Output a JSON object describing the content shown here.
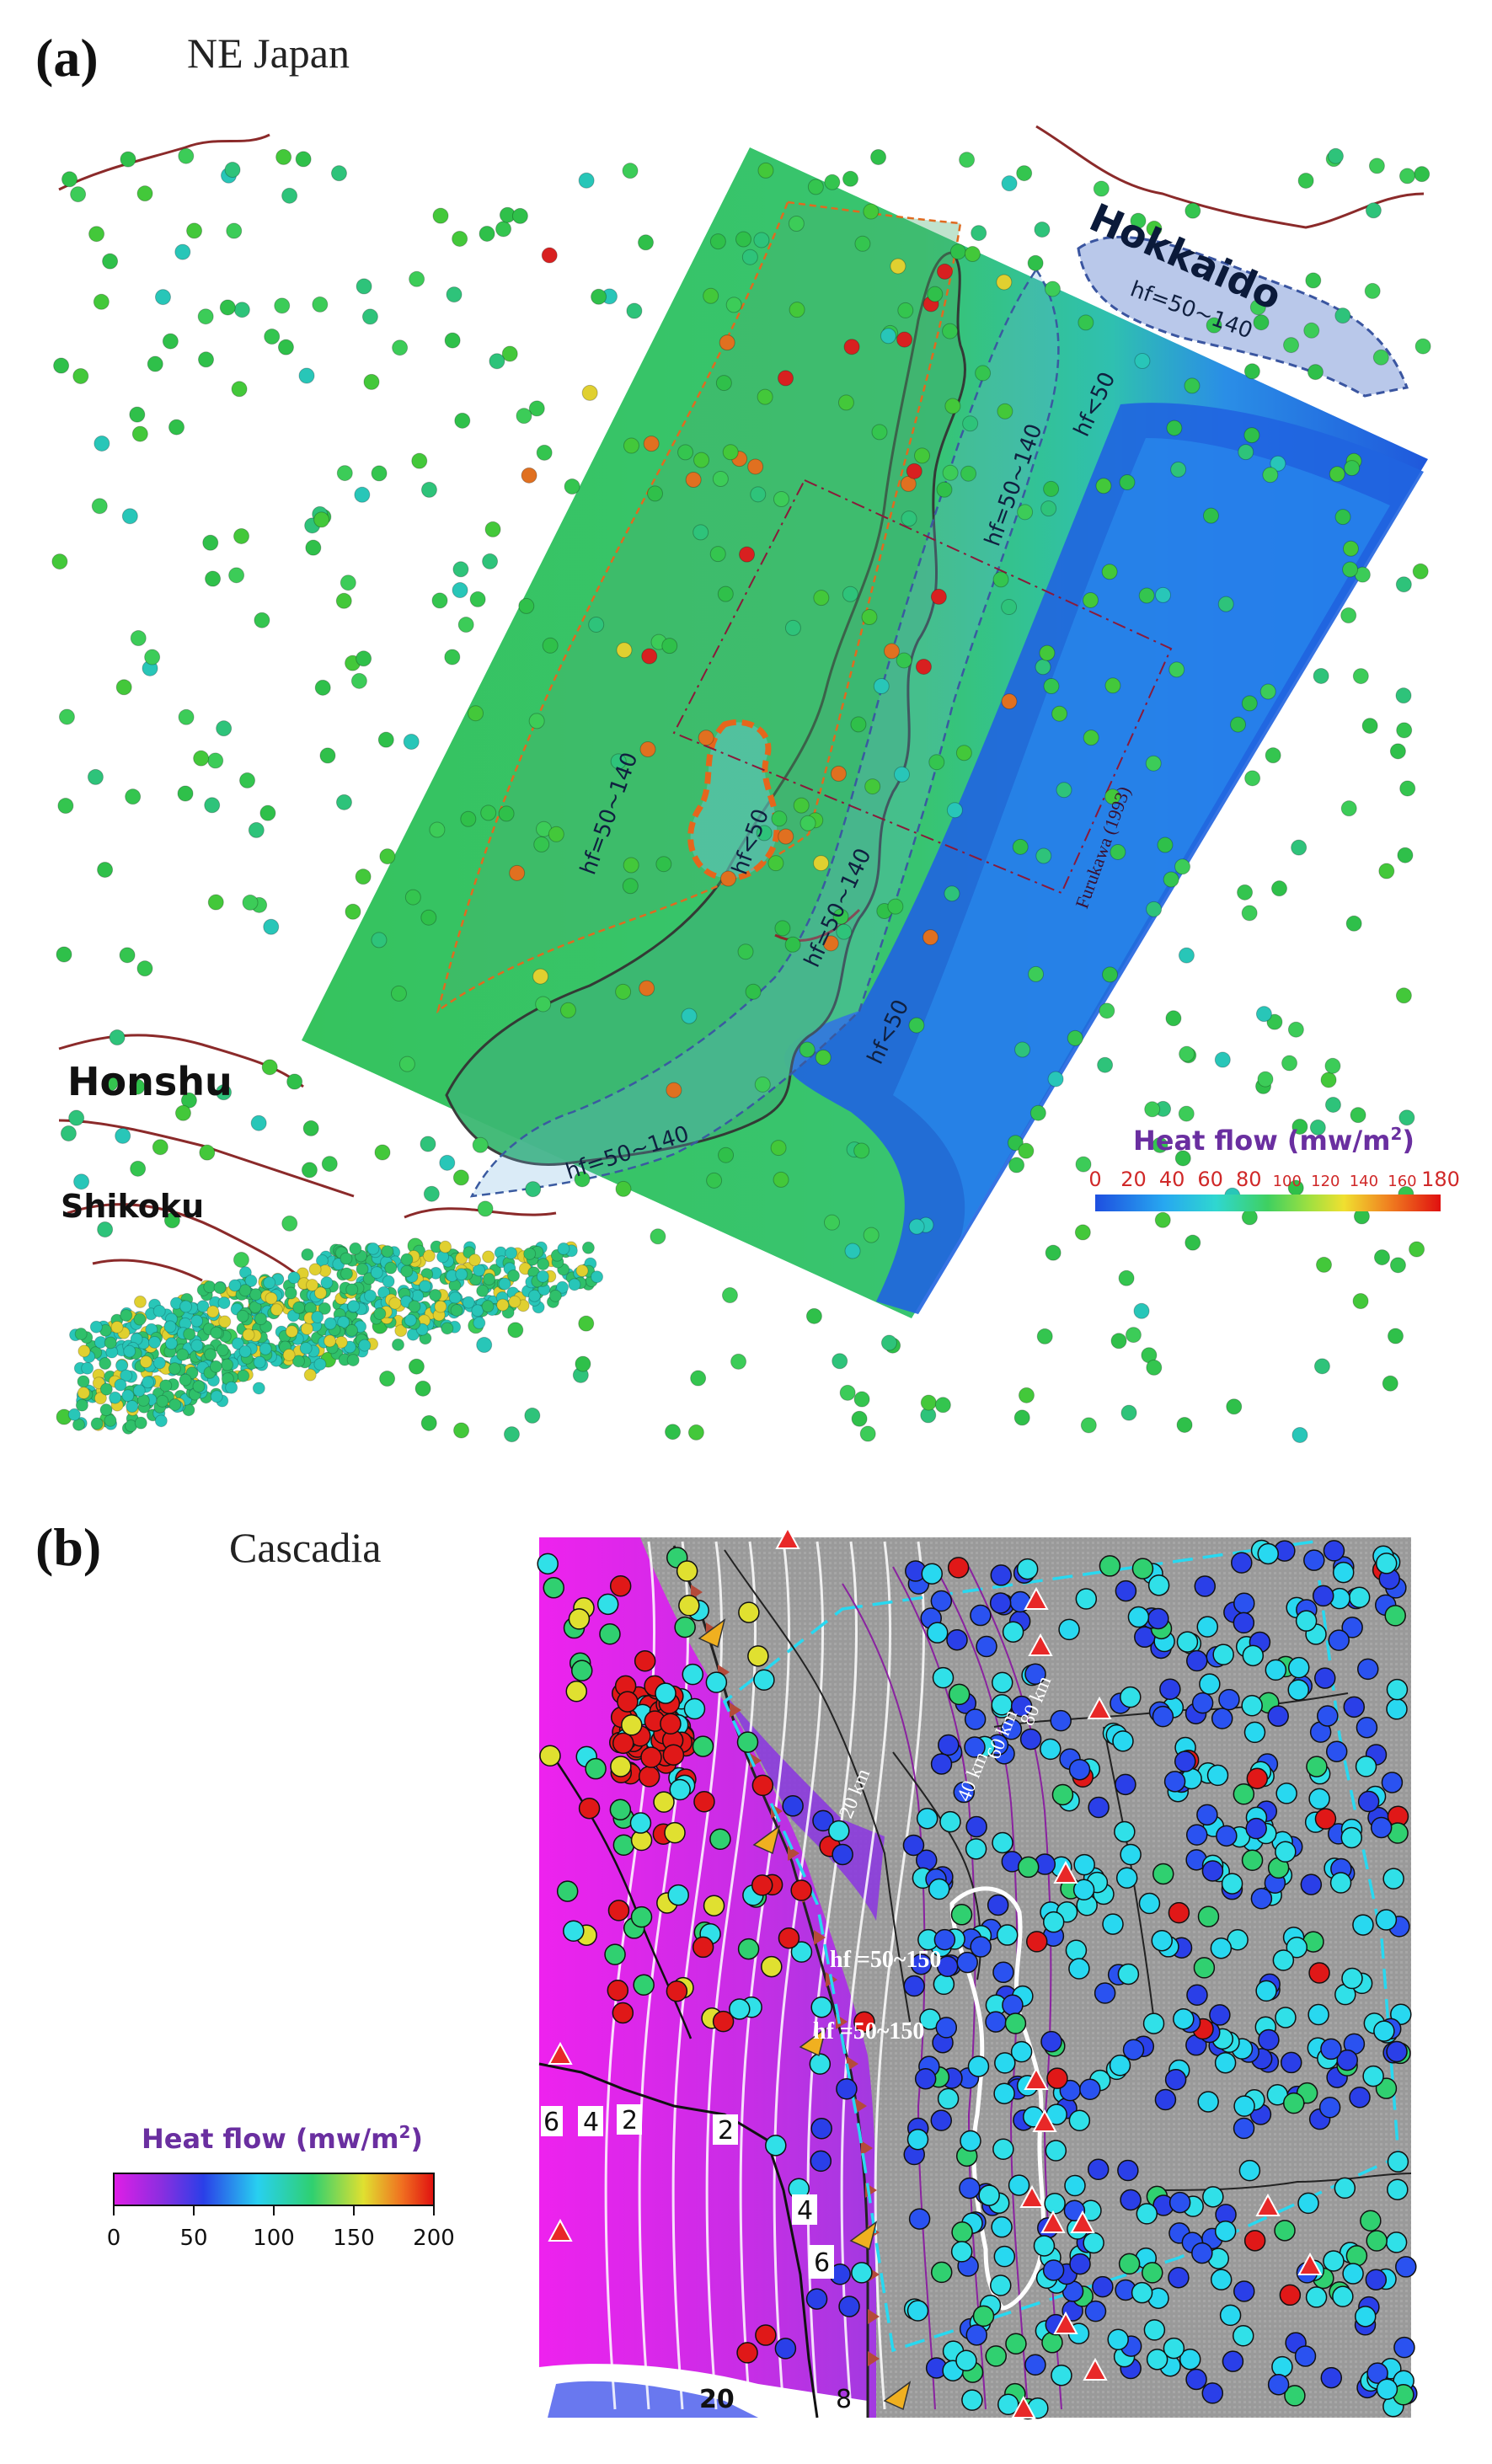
{
  "panel_a": {
    "letter": "(a)",
    "region": "NE Japan",
    "labels": {
      "hokkaido": "Hokkaido",
      "honshu": "Honshu",
      "shikoku": "Shikoku",
      "hf_hokkaido": "hf=50~140",
      "hf_east_mid": "hf=50~140",
      "hf_lt50_ne": "hf<50",
      "hf_west": "hf=50~140",
      "hf_lt50_center": "hf<50",
      "hf_south": "hf=50~140",
      "hf_lt50_se": "hf<50",
      "hf_sw": "hf=50~140",
      "furukawa": "Furukawa (1993)"
    },
    "colorbar": {
      "title": "Heat flow (mw/m",
      "sup": "2",
      "title_close": ")",
      "ticks": [
        "0",
        "20",
        "40",
        "60",
        "80",
        "100",
        "120",
        "140",
        "160",
        "180"
      ],
      "range": [
        0,
        180
      ]
    }
  },
  "panel_b": {
    "letter": "(b)",
    "region": "Cascadia",
    "labels": {
      "hf_upper": "hf =50~150",
      "hf_lower": "hf =50~150",
      "km20": "20 km",
      "km40": "40 km",
      "km60": "60 km",
      "km80": "80 km",
      "c2a": "2",
      "c2b": "2",
      "c4a": "4",
      "c4b": "4",
      "c6a": "6",
      "c6b": "6",
      "c8": "8",
      "c20": "20"
    },
    "colorbar": {
      "title": "Heat flow (mw/m",
      "sup": "2",
      "title_close": ")",
      "ticks": [
        "0",
        "50",
        "100",
        "150",
        "200"
      ],
      "range": [
        0,
        200
      ]
    }
  },
  "colors": {
    "magenta_model": "#d836e6",
    "green_model": "#35c060",
    "ocean_blue": "#1a5ee0",
    "coast": "#8b2a2a",
    "accent_purple": "#6a2fa0"
  }
}
